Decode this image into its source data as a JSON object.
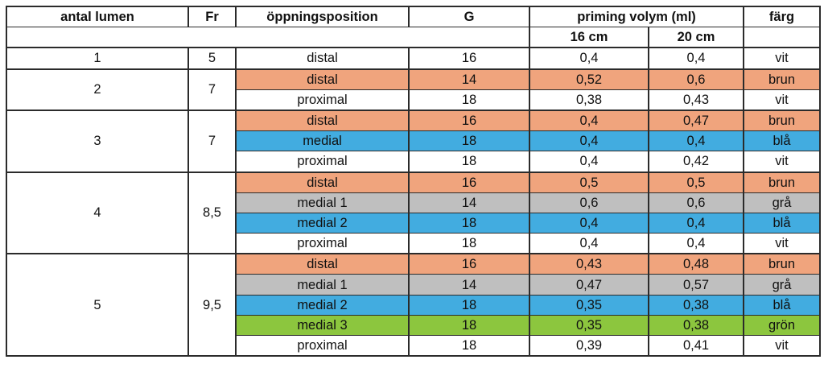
{
  "table": {
    "title_semantic": "catheter priming volume table",
    "border_color": "#2b2b2b",
    "header": {
      "col_lumen": "antal lumen",
      "col_fr": "Fr",
      "col_position": "öppningsposition",
      "col_g": "G",
      "col_priming": "priming volym (ml)",
      "col_farg": "färg",
      "sub_16": "16 cm",
      "sub_20": "20 cm",
      "empty": ""
    },
    "row_colors": {
      "white": "#ffffff",
      "brown": "#f0a47d",
      "gray": "#bfbfbf",
      "blue": "#42ace0",
      "green": "#8cc63e"
    },
    "groups": [
      {
        "lumen": "1",
        "fr": "5",
        "rows": [
          {
            "position": "distal",
            "g": "16",
            "v16": "0,4",
            "v20": "0,4",
            "farg": "vit",
            "fill": "white"
          }
        ]
      },
      {
        "lumen": "2",
        "fr": "7",
        "rows": [
          {
            "position": "distal",
            "g": "14",
            "v16": "0,52",
            "v20": "0,6",
            "farg": "brun",
            "fill": "brown"
          },
          {
            "position": "proximal",
            "g": "18",
            "v16": "0,38",
            "v20": "0,43",
            "farg": "vit",
            "fill": "white"
          }
        ]
      },
      {
        "lumen": "3",
        "fr": "7",
        "rows": [
          {
            "position": "distal",
            "g": "16",
            "v16": "0,4",
            "v20": "0,47",
            "farg": "brun",
            "fill": "brown"
          },
          {
            "position": "medial",
            "g": "18",
            "v16": "0,4",
            "v20": "0,4",
            "farg": "blå",
            "fill": "blue"
          },
          {
            "position": "proximal",
            "g": "18",
            "v16": "0,4",
            "v20": "0,42",
            "farg": "vit",
            "fill": "white"
          }
        ]
      },
      {
        "lumen": "4",
        "fr": "8,5",
        "rows": [
          {
            "position": "distal",
            "g": "16",
            "v16": "0,5",
            "v20": "0,5",
            "farg": "brun",
            "fill": "brown"
          },
          {
            "position": "medial 1",
            "g": "14",
            "v16": "0,6",
            "v20": "0,6",
            "farg": "grå",
            "fill": "gray"
          },
          {
            "position": "medial 2",
            "g": "18",
            "v16": "0,4",
            "v20": "0,4",
            "farg": "blå",
            "fill": "blue"
          },
          {
            "position": "proximal",
            "g": "18",
            "v16": "0,4",
            "v20": "0,4",
            "farg": "vit",
            "fill": "white"
          }
        ]
      },
      {
        "lumen": "5",
        "fr": "9,5",
        "rows": [
          {
            "position": "distal",
            "g": "16",
            "v16": "0,43",
            "v20": "0,48",
            "farg": "brun",
            "fill": "brown"
          },
          {
            "position": "medial 1",
            "g": "14",
            "v16": "0,47",
            "v20": "0,57",
            "farg": "grå",
            "fill": "gray"
          },
          {
            "position": "medial 2",
            "g": "18",
            "v16": "0,35",
            "v20": "0,38",
            "farg": "blå",
            "fill": "blue"
          },
          {
            "position": "medial 3",
            "g": "18",
            "v16": "0,35",
            "v20": "0,38",
            "farg": "grön",
            "fill": "green"
          },
          {
            "position": "proximal",
            "g": "18",
            "v16": "0,39",
            "v20": "0,41",
            "farg": "vit",
            "fill": "white"
          }
        ]
      }
    ]
  }
}
